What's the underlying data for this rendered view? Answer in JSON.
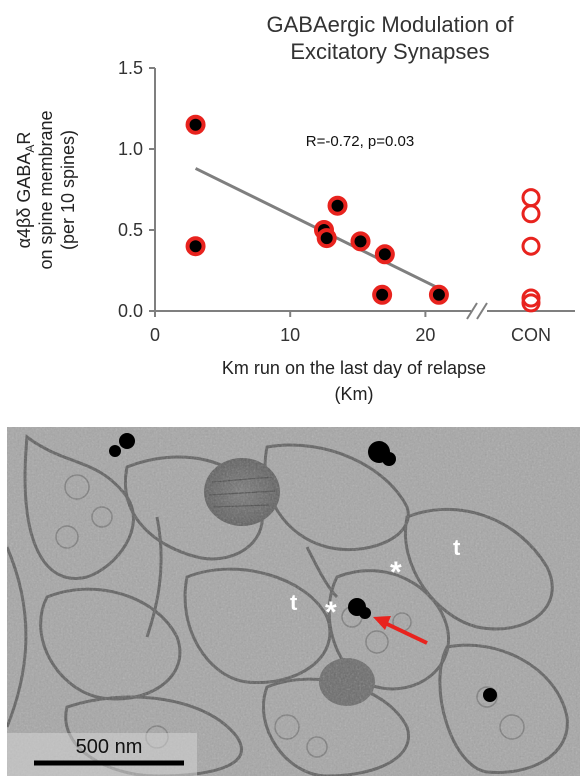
{
  "chart_data": {
    "type": "scatter",
    "title_lines": [
      "GABAergic Modulation of",
      "Excitatory Synapses"
    ],
    "ylabel_lines": [
      "α4βδ GABA",
      "A",
      "R",
      "on spine membrane",
      "(per 10 spines)"
    ],
    "xlabel_lines": [
      "Km run on the last day of relapse",
      "(Km)"
    ],
    "annotation": "R=-0.72, p=0.03",
    "ylim": [
      0,
      1.5
    ],
    "y_ticks": [
      "0.0",
      "0.5",
      "1.0",
      "1.5"
    ],
    "xlim": [
      0,
      25
    ],
    "x_ticks": [
      "0",
      "10",
      "20"
    ],
    "x_tick_values": [
      0,
      10,
      20
    ],
    "control_tick": "CON",
    "series": [
      {
        "marker": "filled",
        "points": [
          {
            "x": 3,
            "y": 1.15
          },
          {
            "x": 3,
            "y": 0.4
          },
          {
            "x": 12.5,
            "y": 0.5
          },
          {
            "x": 12.7,
            "y": 0.45
          },
          {
            "x": 13.5,
            "y": 0.65
          },
          {
            "x": 15.2,
            "y": 0.43
          },
          {
            "x": 16.8,
            "y": 0.1
          },
          {
            "x": 17,
            "y": 0.35
          },
          {
            "x": 21,
            "y": 0.1
          }
        ]
      },
      {
        "marker": "open",
        "category": "CON",
        "values": [
          0.7,
          0.6,
          0.4,
          0.08,
          0.05
        ]
      }
    ],
    "regression": {
      "x": [
        3,
        21
      ],
      "y": [
        0.88,
        0.14
      ]
    },
    "colors": {
      "marker_edge": "#e8231e",
      "marker_fill": "#000000",
      "line": "#7f7f7f",
      "axis": "#7f7f7f",
      "text": "#333333"
    }
  },
  "micrograph": {
    "markers": [
      "t",
      "t",
      "*",
      "*"
    ],
    "scale_bar_label": "500 nm",
    "arrow_color": "#e8231e"
  }
}
